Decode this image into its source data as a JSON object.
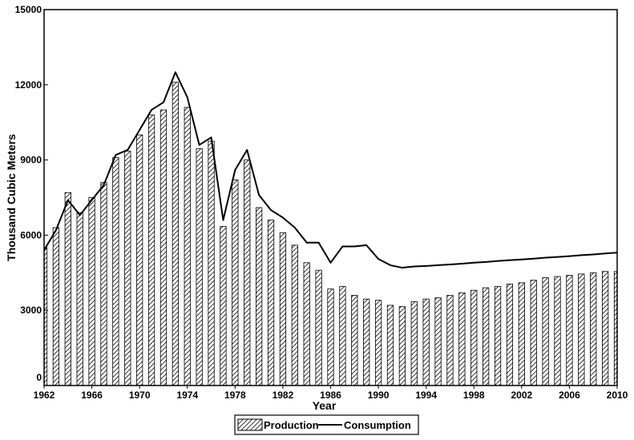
{
  "chart_data": {
    "type": "bar",
    "title": "",
    "xlabel": "Year",
    "ylabel": "Thousand Cubic Meters",
    "ylim": [
      0,
      15000
    ],
    "yticks": [
      0,
      3000,
      6000,
      9000,
      12000,
      15000
    ],
    "xticks": [
      1962,
      1966,
      1970,
      1974,
      1978,
      1982,
      1986,
      1990,
      1994,
      1998,
      2002,
      2006,
      2010
    ],
    "xlim": [
      1962,
      2010
    ],
    "grid": false,
    "legend_position": "bottom-center",
    "x": [
      1962,
      1963,
      1964,
      1965,
      1966,
      1967,
      1968,
      1969,
      1970,
      1971,
      1972,
      1973,
      1974,
      1975,
      1976,
      1977,
      1978,
      1979,
      1980,
      1981,
      1982,
      1983,
      1984,
      1985,
      1986,
      1987,
      1988,
      1989,
      1990,
      1991,
      1992,
      1993,
      1994,
      1995,
      1996,
      1997,
      1998,
      1999,
      2000,
      2001,
      2002,
      2003,
      2004,
      2005,
      2006,
      2007,
      2008,
      2009,
      2010
    ],
    "series": [
      {
        "name": "Production",
        "style": "hatched-bar",
        "values": [
          5500,
          6300,
          7700,
          6900,
          7500,
          8100,
          9100,
          9350,
          10000,
          10800,
          11000,
          12100,
          11100,
          9450,
          9750,
          6350,
          8200,
          9000,
          7100,
          6600,
          6100,
          5600,
          4900,
          4600,
          3850,
          3950,
          3600,
          3450,
          3400,
          3200,
          3150,
          3350,
          3450,
          3500,
          3600,
          3700,
          3800,
          3900,
          3950,
          4050,
          4100,
          4200,
          4300,
          4350,
          4400,
          4450,
          4500,
          4550,
          4550
        ]
      },
      {
        "name": "Consumption",
        "style": "line",
        "values": [
          5400,
          6200,
          7400,
          6800,
          7400,
          8000,
          9200,
          9400,
          10200,
          11000,
          11300,
          12500,
          11500,
          9600,
          9900,
          6600,
          8600,
          9400,
          7600,
          7000,
          6700,
          6300,
          5700,
          5700,
          4900,
          5550,
          5550,
          5600,
          5050,
          4800,
          4700,
          4750,
          4770,
          4800,
          4830,
          4860,
          4900,
          4930,
          4970,
          5000,
          5030,
          5060,
          5100,
          5130,
          5160,
          5200,
          5230,
          5270,
          5300
        ]
      }
    ],
    "colors": {
      "production_fill": "#ffffff",
      "hatch": "#000000",
      "line": "#000000",
      "frame": "#000000"
    }
  }
}
